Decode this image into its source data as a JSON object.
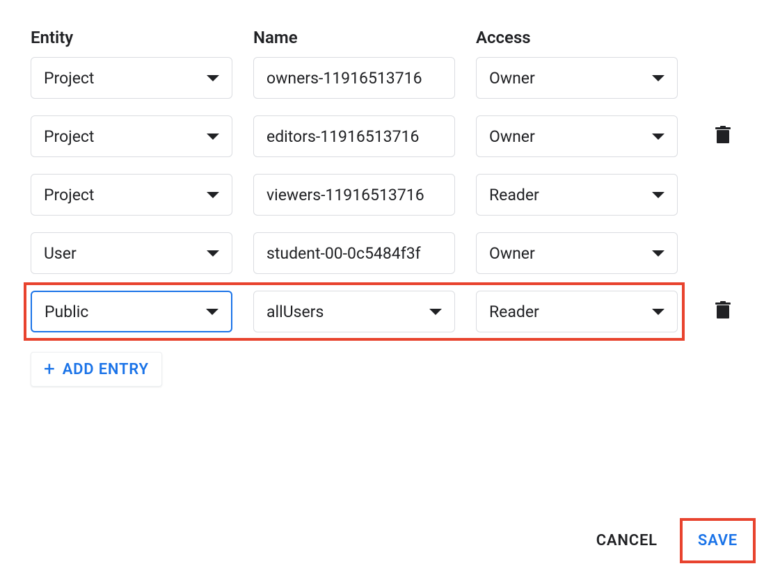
{
  "colors": {
    "border": "#dadce0",
    "text": "#202124",
    "primary": "#1a73e8",
    "highlight": "#e8432e",
    "background": "#ffffff"
  },
  "columns": {
    "entity": "Entity",
    "name": "Name",
    "access": "Access"
  },
  "rows": [
    {
      "entity": "Project",
      "name": "owners-11916513716",
      "name_has_caret": false,
      "access": "Owner",
      "delete": false,
      "entity_focused": false
    },
    {
      "entity": "Project",
      "name": "editors-11916513716",
      "name_has_caret": false,
      "access": "Owner",
      "delete": true,
      "entity_focused": false
    },
    {
      "entity": "Project",
      "name": "viewers-11916513716",
      "name_has_caret": false,
      "access": "Reader",
      "delete": false,
      "entity_focused": false
    },
    {
      "entity": "User",
      "name": "student-00-0c5484f3f",
      "name_has_caret": false,
      "access": "Owner",
      "delete": false,
      "entity_focused": false
    },
    {
      "entity": "Public",
      "name": "allUsers",
      "name_has_caret": true,
      "access": "Reader",
      "delete": true,
      "entity_focused": true
    }
  ],
  "add_entry_label": "ADD ENTRY",
  "buttons": {
    "cancel": "CANCEL",
    "save": "SAVE"
  },
  "highlights": {
    "row_index": 4,
    "save_button": true
  }
}
